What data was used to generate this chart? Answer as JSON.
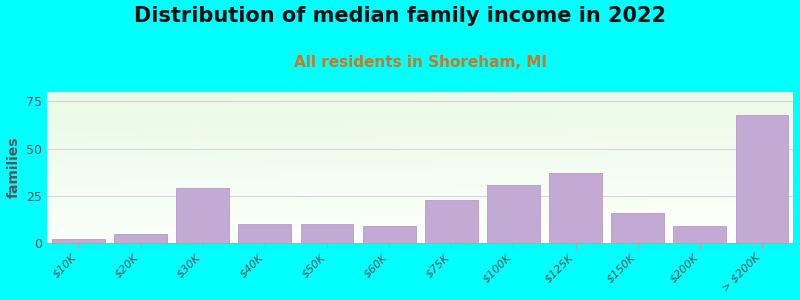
{
  "title": "Distribution of median family income in 2022",
  "subtitle": "All residents in Shoreham, MI",
  "ylabel": "families",
  "categories": [
    "$10K",
    "$20K",
    "$30K",
    "$40K",
    "$50K",
    "$60K",
    "$75K",
    "$100K",
    "$125K",
    "$150K",
    "$200K",
    "> $200K"
  ],
  "values": [
    2,
    5,
    29,
    10,
    10,
    9,
    23,
    31,
    37,
    16,
    9,
    68
  ],
  "bar_color": "#c3aad4",
  "bar_edgecolor": "#b090c0",
  "background_color": "#00ffff",
  "ylim": [
    0,
    80
  ],
  "yticks": [
    0,
    25,
    50,
    75
  ],
  "grid_color": "#e0d0e0",
  "title_fontsize": 15,
  "subtitle_fontsize": 11,
  "subtitle_color": "#cc7722",
  "ylabel_color": "#555555",
  "tick_color": "#555555"
}
